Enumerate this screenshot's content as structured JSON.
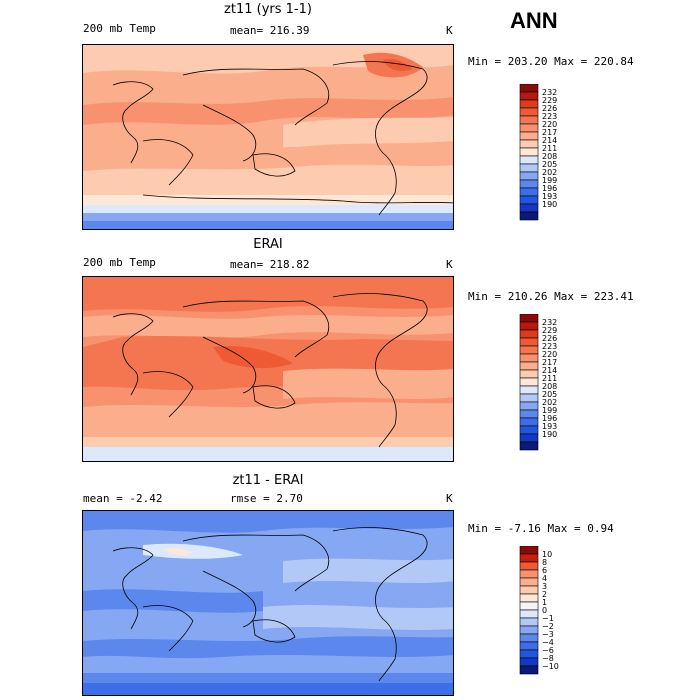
{
  "season": "ANN",
  "palette": {
    "temp": [
      "#0a1a7a",
      "#1438c4",
      "#2455e0",
      "#3c6ee8",
      "#5c88ee",
      "#86a8f2",
      "#b2c8f6",
      "#dce8fb",
      "#fde7d6",
      "#fccbb0",
      "#fbae8c",
      "#f8926e",
      "#f47650",
      "#ee5a34",
      "#de3a1c",
      "#b81810",
      "#8a0a0a"
    ],
    "diff": [
      "#0a1a7a",
      "#1438c4",
      "#2455e0",
      "#3c6ee8",
      "#5c88ee",
      "#86a8f2",
      "#b2c8f6",
      "#dce8fb",
      "#f5f5f5",
      "#fde7d6",
      "#fccbb0",
      "#fbae8c",
      "#f8926e",
      "#ee5a34",
      "#c81e10",
      "#8a0a0a"
    ]
  },
  "chart_data": [
    {
      "type": "heatmap",
      "title": "zt11 (yrs 1-1)",
      "left_label": "200 mb Temp",
      "mean_label": "mean= 216.39",
      "units": "K",
      "minmax": "Min = 203.20 Max = 220.84",
      "min": 203.2,
      "max": 220.84,
      "levels": [
        "232",
        "229",
        "226",
        "223",
        "220",
        "217",
        "214",
        "211",
        "208",
        "205",
        "202",
        "199",
        "196",
        "193",
        "190"
      ]
    },
    {
      "type": "heatmap",
      "title": "ERAI",
      "left_label": "200 mb Temp",
      "mean_label": "mean= 218.82",
      "units": "K",
      "minmax": "Min = 210.26 Max = 223.41",
      "min": 210.26,
      "max": 223.41,
      "levels": [
        "232",
        "229",
        "226",
        "223",
        "220",
        "217",
        "214",
        "211",
        "208",
        "205",
        "202",
        "199",
        "196",
        "193",
        "190"
      ]
    },
    {
      "type": "heatmap",
      "title": "zt11 - ERAI",
      "left_label": "mean =   -2.42",
      "mean_label": "rmse =    2.70",
      "units": "K",
      "minmax": "Min =  -7.16 Max =    0.94",
      "min": -7.16,
      "max": 0.94,
      "levels": [
        "10",
        "8",
        "6",
        "4",
        "3",
        "2",
        "1",
        "0",
        "−1",
        "−2",
        "−3",
        "−4",
        "−6",
        "−8",
        "−10"
      ]
    }
  ]
}
